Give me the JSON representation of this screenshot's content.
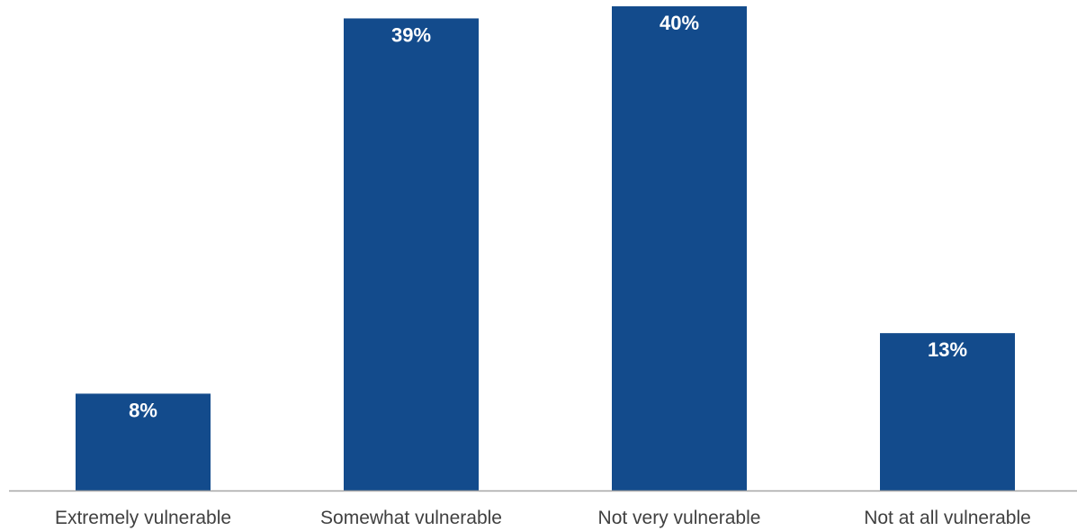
{
  "chart_data": {
    "type": "bar",
    "categories": [
      "Extremely vulnerable",
      "Somewhat vulnerable",
      "Not very vulnerable",
      "Not at all vulnerable"
    ],
    "values": [
      8,
      39,
      40,
      13
    ],
    "data_labels": [
      "8%",
      "39%",
      "40%",
      "13%"
    ],
    "ylim": [
      0,
      40
    ],
    "grid": false,
    "legend": "none",
    "colors": {
      "bar": "#134b8c",
      "axis": "#a6a6a6",
      "value_label": "#ffffff",
      "category_label": "#404040"
    }
  }
}
